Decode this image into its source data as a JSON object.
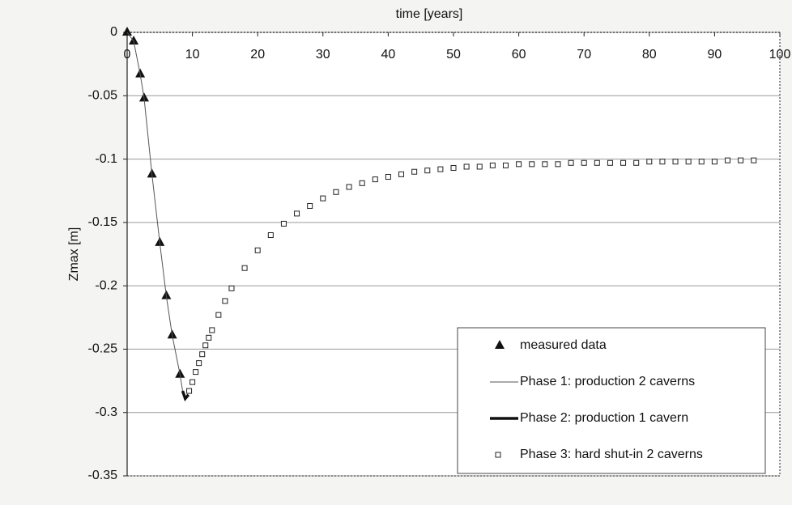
{
  "chart_data": {
    "type": "line",
    "title": "time [years]",
    "y_label": "Zmax [m]",
    "xlim": [
      0,
      100
    ],
    "xticks": [
      0,
      10,
      20,
      30,
      40,
      50,
      60,
      70,
      80,
      90,
      100
    ],
    "ylim": [
      -0.35,
      0
    ],
    "yticks": [
      0,
      -0.05,
      -0.1,
      -0.15,
      -0.2,
      -0.25,
      -0.3,
      -0.35
    ],
    "grid": true,
    "x_axis_position": "top",
    "legend_position": "lower right",
    "series": [
      {
        "name": "measured data",
        "color": "#111111",
        "marker": "triangle",
        "line": false,
        "x": [
          0,
          1,
          2,
          2.6,
          3.8,
          5,
          6,
          6.9,
          8.1
        ],
        "values": [
          0,
          -0.007,
          -0.033,
          -0.052,
          -0.112,
          -0.166,
          -0.208,
          -0.239,
          -0.27
        ]
      },
      {
        "name": "Phase 1: production 2 caverns",
        "color": "#555555",
        "marker": null,
        "line": true,
        "line_width": 1,
        "x": [
          0,
          1,
          2,
          2.6,
          3.8,
          5,
          6,
          6.9,
          8.1,
          8.5
        ],
        "values": [
          0,
          -0.007,
          -0.033,
          -0.052,
          -0.112,
          -0.166,
          -0.208,
          -0.239,
          -0.27,
          -0.283
        ]
      },
      {
        "name": "Phase 2: production 1 cavern",
        "color": "#111111",
        "marker": null,
        "line": true,
        "line_width": 3.5,
        "x": [
          8.5,
          8.9,
          9.4
        ],
        "values": [
          -0.283,
          -0.289,
          -0.286
        ]
      },
      {
        "name": "Phase 3: hard shut-in 2 caverns",
        "color": "#222222",
        "marker": "square",
        "line": false,
        "x": [
          9.5,
          10,
          10.5,
          11,
          11.5,
          12,
          12.5,
          13,
          14,
          15,
          16,
          18,
          20,
          22,
          24,
          26,
          28,
          30,
          32,
          34,
          36,
          38,
          40,
          42,
          44,
          46,
          48,
          50,
          52,
          54,
          56,
          58,
          60,
          62,
          64,
          66,
          68,
          70,
          72,
          74,
          76,
          78,
          80,
          82,
          84,
          86,
          88,
          90,
          92,
          94,
          96
        ],
        "values": [
          -0.283,
          -0.276,
          -0.268,
          -0.261,
          -0.254,
          -0.247,
          -0.241,
          -0.235,
          -0.223,
          -0.212,
          -0.202,
          -0.186,
          -0.172,
          -0.16,
          -0.151,
          -0.143,
          -0.137,
          -0.131,
          -0.126,
          -0.122,
          -0.119,
          -0.116,
          -0.114,
          -0.112,
          -0.11,
          -0.109,
          -0.108,
          -0.107,
          -0.106,
          -0.106,
          -0.105,
          -0.105,
          -0.104,
          -0.104,
          -0.104,
          -0.104,
          -0.103,
          -0.103,
          -0.103,
          -0.103,
          -0.103,
          -0.103,
          -0.102,
          -0.102,
          -0.102,
          -0.102,
          -0.102,
          -0.102,
          -0.101,
          -0.101,
          -0.101
        ]
      }
    ]
  }
}
